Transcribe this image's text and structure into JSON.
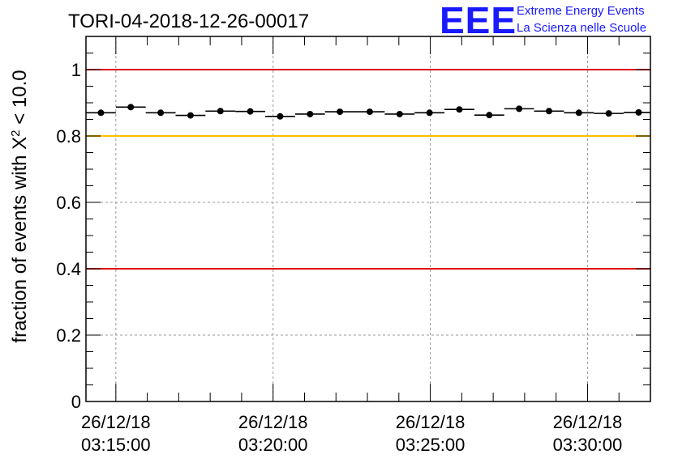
{
  "title": "TORI-04-2018-12-26-00017",
  "logo": {
    "letters": "EEE",
    "line1": "Extreme Energy Events",
    "line2": "La Scienza nelle Scuole",
    "color": "#1a1aff"
  },
  "chart_data": {
    "type": "scatter",
    "title": "TORI-04-2018-12-26-00017",
    "ylabel_prefix": "fraction of events with ",
    "ylabel_symbol": "X",
    "ylabel_superscript": "2",
    "ylabel_suffix": " < 10.0",
    "xlabel": "",
    "ylim": [
      0,
      1.1
    ],
    "xlim_minutes": [
      -0.95,
      17.0
    ],
    "yticks": [
      0,
      0.2,
      0.4,
      0.6,
      0.8,
      1
    ],
    "ytick_labels": [
      "0",
      "0.2",
      "0.4",
      "0.6",
      "0.8",
      "1"
    ],
    "xticks": [
      {
        "minute": 0,
        "date": "26/12/18",
        "time": "03:15:00"
      },
      {
        "minute": 5,
        "date": "26/12/18",
        "time": "03:20:00"
      },
      {
        "minute": 10,
        "date": "26/12/18",
        "time": "03:25:00"
      },
      {
        "minute": 15,
        "date": "26/12/18",
        "time": "03:30:00"
      }
    ],
    "grid": true,
    "bin_width_minutes": 0.95,
    "x": [
      -0.475,
      0.475,
      1.425,
      2.375,
      3.325,
      4.275,
      5.225,
      6.175,
      7.125,
      8.075,
      9.025,
      9.975,
      10.925,
      11.875,
      12.825,
      13.775,
      14.725,
      15.675,
      16.625
    ],
    "y": [
      0.87,
      0.887,
      0.87,
      0.862,
      0.875,
      0.874,
      0.859,
      0.866,
      0.873,
      0.873,
      0.866,
      0.87,
      0.88,
      0.863,
      0.882,
      0.875,
      0.87,
      0.868,
      0.871
    ],
    "reference_lines": [
      {
        "y": 1.0,
        "color": "#e00000"
      },
      {
        "y": 0.8,
        "color": "#ffc000"
      },
      {
        "y": 0.4,
        "color": "#e00000"
      }
    ]
  }
}
